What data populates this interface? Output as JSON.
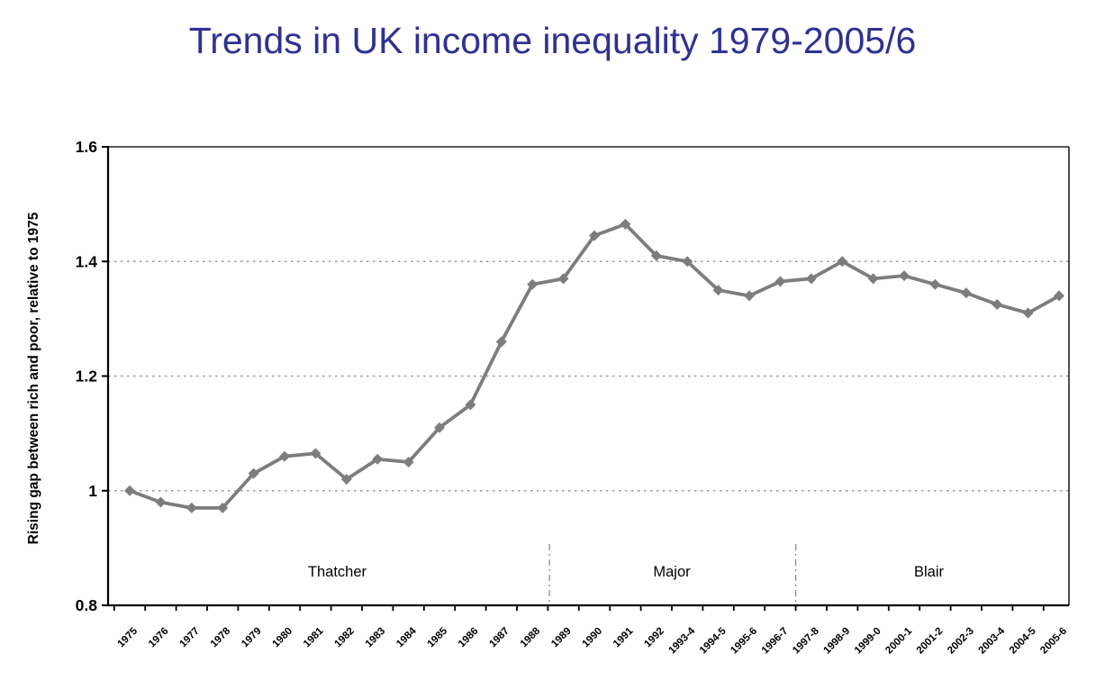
{
  "title": {
    "text": "Trends in UK income inequality 1979-2005/6",
    "color": "#2F3193"
  },
  "chart_data": {
    "type": "line",
    "title": "Trends in UK income inequality 1979-2005/6",
    "xlabel": "",
    "ylabel": "Rising gap between rich and poor, relative to 1975",
    "ylim": [
      0.8,
      1.6
    ],
    "yticks": [
      {
        "value": 0.8,
        "label": "0.8"
      },
      {
        "value": 1.0,
        "label": "1"
      },
      {
        "value": 1.2,
        "label": "1.2"
      },
      {
        "value": 1.4,
        "label": "1.4"
      },
      {
        "value": 1.6,
        "label": "1.6"
      }
    ],
    "gridlines": [
      1.0,
      1.2,
      1.4
    ],
    "grid_style": "dotted-horizontal",
    "legend": "none",
    "categories": [
      "1975",
      "1976",
      "1977",
      "1978",
      "1979",
      "1980",
      "1981",
      "1982",
      "1983",
      "1984",
      "1985",
      "1986",
      "1987",
      "1988",
      "1989",
      "1990",
      "1991",
      "1992",
      "1993-4",
      "1994-5",
      "1995-6",
      "1996-7",
      "1997-8",
      "1998-9",
      "1999-0",
      "2000-1",
      "2001-2",
      "2002-3",
      "2003-4",
      "2004-5",
      "2005-6"
    ],
    "values": [
      1.0,
      0.98,
      0.97,
      0.97,
      1.03,
      1.06,
      1.065,
      1.02,
      1.055,
      1.05,
      1.11,
      1.15,
      1.26,
      1.36,
      1.37,
      1.445,
      1.465,
      1.41,
      1.4,
      1.35,
      1.34,
      1.365,
      1.37,
      1.4,
      1.37,
      1.375,
      1.36,
      1.345,
      1.325,
      1.31,
      1.34
    ],
    "series_color": "#7d7d7d",
    "marker": "diamond",
    "annotations": {
      "dividers": [
        {
          "position_index": 13.55
        },
        {
          "position_index": 21.5
        }
      ],
      "era_labels": [
        {
          "text": "Thatcher",
          "center_index": 6.7
        },
        {
          "text": "Major",
          "center_index": 17.5
        },
        {
          "text": "Blair",
          "center_index": 25.8
        }
      ],
      "divider_color": "#8c8c8c"
    },
    "colors": {
      "axis": "#000000",
      "gridline": "#999999",
      "tick_label": "#000000"
    }
  }
}
